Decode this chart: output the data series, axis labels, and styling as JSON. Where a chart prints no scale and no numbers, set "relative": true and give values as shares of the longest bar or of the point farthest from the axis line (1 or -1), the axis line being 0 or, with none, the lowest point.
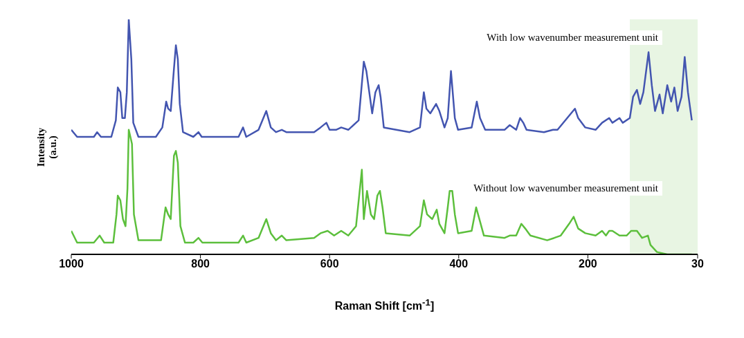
{
  "chart_data": {
    "type": "line",
    "relative": true,
    "xlabel": "Raman Shift [cm$^{-1}$]",
    "ylabel": "Intensity\n(a.u.)",
    "xlim": [
      1000,
      30
    ],
    "xticks": [
      1000,
      800,
      600,
      400,
      200,
      30
    ],
    "legend": false,
    "grid": false,
    "marker": "none",
    "line_style": "solid",
    "bands": [
      {
        "axis": "x",
        "from": 135,
        "to": 30,
        "color": "#e8f5e3"
      }
    ],
    "series": [
      {
        "name": "With low wavenumber measurement unit",
        "color": "#4355b0",
        "x": [
          1000,
          991,
          965,
          960,
          954,
          938,
          931,
          928,
          924,
          921,
          917,
          914,
          911,
          907,
          904,
          896,
          869,
          859,
          853,
          850,
          846,
          841,
          838,
          835,
          832,
          827,
          811,
          803,
          798,
          741,
          734,
          729,
          710,
          698,
          691,
          683,
          674,
          667,
          624,
          614,
          605,
          600,
          590,
          582,
          571,
          555,
          547,
          543,
          534,
          529,
          524,
          521,
          516,
          476,
          460,
          454,
          450,
          444,
          435,
          430,
          422,
          417,
          412,
          406,
          401,
          380,
          372,
          367,
          359,
          329,
          321,
          311,
          305,
          300,
          295,
          268,
          254,
          247,
          226,
          220,
          215,
          204,
          188,
          178,
          167,
          162,
          151,
          146,
          135,
          130,
          124,
          119,
          114,
          106,
          101,
          96,
          89,
          84,
          77,
          71,
          66,
          61,
          55,
          50,
          45,
          39
        ],
        "values": [
          0.53,
          0.5,
          0.5,
          0.52,
          0.5,
          0.5,
          0.57,
          0.71,
          0.69,
          0.58,
          0.58,
          0.69,
          1.0,
          0.83,
          0.56,
          0.5,
          0.5,
          0.54,
          0.65,
          0.62,
          0.61,
          0.79,
          0.89,
          0.83,
          0.64,
          0.52,
          0.5,
          0.52,
          0.5,
          0.5,
          0.54,
          0.5,
          0.53,
          0.61,
          0.54,
          0.52,
          0.53,
          0.52,
          0.52,
          0.54,
          0.56,
          0.53,
          0.53,
          0.54,
          0.53,
          0.57,
          0.82,
          0.78,
          0.6,
          0.69,
          0.72,
          0.67,
          0.54,
          0.52,
          0.54,
          0.69,
          0.62,
          0.6,
          0.64,
          0.61,
          0.54,
          0.58,
          0.78,
          0.58,
          0.53,
          0.54,
          0.65,
          0.58,
          0.53,
          0.53,
          0.55,
          0.53,
          0.58,
          0.56,
          0.53,
          0.52,
          0.53,
          0.53,
          0.6,
          0.62,
          0.58,
          0.54,
          0.53,
          0.56,
          0.58,
          0.56,
          0.58,
          0.56,
          0.58,
          0.67,
          0.7,
          0.64,
          0.69,
          0.86,
          0.72,
          0.61,
          0.68,
          0.6,
          0.72,
          0.65,
          0.71,
          0.61,
          0.67,
          0.84,
          0.69,
          0.57
        ]
      },
      {
        "name": "Without low wavenumber measurement unit",
        "color": "#5cbf3c",
        "x": [
          1000,
          991,
          965,
          956,
          949,
          935,
          930,
          928,
          924,
          920,
          916,
          913,
          911,
          906,
          903,
          896,
          861,
          854,
          850,
          846,
          841,
          838,
          835,
          831,
          824,
          811,
          803,
          797,
          741,
          734,
          729,
          710,
          698,
          691,
          683,
          674,
          667,
          624,
          614,
          603,
          593,
          582,
          571,
          559,
          550,
          547,
          542,
          536,
          531,
          526,
          522,
          518,
          513,
          476,
          460,
          454,
          449,
          441,
          434,
          430,
          422,
          417,
          414,
          410,
          406,
          401,
          380,
          373,
          369,
          361,
          329,
          321,
          311,
          303,
          297,
          289,
          263,
          252,
          242,
          229,
          222,
          215,
          204,
          188,
          178,
          172,
          167,
          162,
          151,
          140,
          133,
          124,
          116,
          107,
          103,
          93,
          77,
          39
        ],
        "values": [
          0.1,
          0.05,
          0.05,
          0.08,
          0.05,
          0.05,
          0.17,
          0.25,
          0.23,
          0.15,
          0.12,
          0.28,
          0.53,
          0.47,
          0.17,
          0.06,
          0.06,
          0.2,
          0.17,
          0.15,
          0.42,
          0.44,
          0.39,
          0.12,
          0.05,
          0.05,
          0.07,
          0.05,
          0.05,
          0.08,
          0.05,
          0.07,
          0.15,
          0.09,
          0.06,
          0.08,
          0.06,
          0.07,
          0.09,
          0.1,
          0.08,
          0.1,
          0.08,
          0.12,
          0.36,
          0.15,
          0.27,
          0.17,
          0.15,
          0.25,
          0.27,
          0.2,
          0.09,
          0.08,
          0.12,
          0.23,
          0.17,
          0.15,
          0.19,
          0.13,
          0.09,
          0.2,
          0.27,
          0.27,
          0.17,
          0.09,
          0.1,
          0.2,
          0.16,
          0.08,
          0.07,
          0.08,
          0.08,
          0.13,
          0.11,
          0.08,
          0.06,
          0.07,
          0.08,
          0.13,
          0.16,
          0.11,
          0.09,
          0.08,
          0.1,
          0.08,
          0.1,
          0.1,
          0.08,
          0.08,
          0.1,
          0.1,
          0.07,
          0.08,
          0.04,
          0.01,
          0.0,
          0.0
        ]
      }
    ]
  }
}
